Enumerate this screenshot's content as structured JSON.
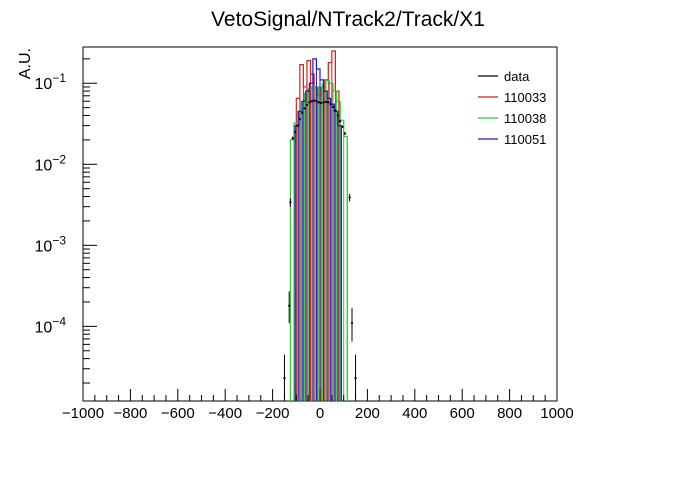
{
  "chart_data": {
    "type": "histogram",
    "title": "VetoSignal/NTrack2/Track/X1",
    "xlabel": "",
    "ylabel": "A.U.",
    "xlim": [
      -1000,
      1000
    ],
    "ylim": [
      1.2e-05,
      0.28
    ],
    "yscale": "log",
    "grid": false,
    "legend_position": "top-right",
    "x_ticks": [
      -1000,
      -800,
      -600,
      -400,
      -200,
      0,
      200,
      400,
      600,
      800,
      1000
    ],
    "x_tick_labels": [
      "−1000",
      "−800",
      "−600",
      "−400",
      "−200",
      "0",
      "200",
      "400",
      "600",
      "800",
      "1000"
    ],
    "y_ticks": [
      {
        "value": 0.1,
        "base": "10",
        "exp": "−1"
      },
      {
        "value": 0.01,
        "base": "10",
        "exp": "−2"
      },
      {
        "value": 0.001,
        "base": "10",
        "exp": "−3"
      },
      {
        "value": 0.0001,
        "base": "10",
        "exp": "−4"
      }
    ],
    "series": [
      {
        "name": "data",
        "style": "points",
        "color": "#000000",
        "points": [
          {
            "x": -150,
            "y": 2.3e-05,
            "lo": 1.3e-05,
            "hi": 4.5e-05
          },
          {
            "x": -130,
            "y": 0.00018,
            "lo": 0.00011,
            "hi": 0.00027
          },
          {
            "x": -125,
            "y": 0.0034,
            "lo": 0.003,
            "hi": 0.0038
          },
          {
            "x": -115,
            "y": 0.021,
            "lo": 0.02,
            "hi": 0.022
          },
          {
            "x": -105,
            "y": 0.025,
            "lo": 0.024,
            "hi": 0.026
          },
          {
            "x": -95,
            "y": 0.03,
            "lo": 0.029,
            "hi": 0.031
          },
          {
            "x": -85,
            "y": 0.036,
            "lo": 0.035,
            "hi": 0.037
          },
          {
            "x": -75,
            "y": 0.043,
            "lo": 0.042,
            "hi": 0.044
          },
          {
            "x": -65,
            "y": 0.049,
            "lo": 0.048,
            "hi": 0.05
          },
          {
            "x": -55,
            "y": 0.054,
            "lo": 0.053,
            "hi": 0.055
          },
          {
            "x": -45,
            "y": 0.058,
            "lo": 0.057,
            "hi": 0.059
          },
          {
            "x": -35,
            "y": 0.06,
            "lo": 0.059,
            "hi": 0.061
          },
          {
            "x": -25,
            "y": 0.061,
            "lo": 0.06,
            "hi": 0.062
          },
          {
            "x": -15,
            "y": 0.06,
            "lo": 0.059,
            "hi": 0.061
          },
          {
            "x": -5,
            "y": 0.058,
            "lo": 0.057,
            "hi": 0.059
          },
          {
            "x": 5,
            "y": 0.057,
            "lo": 0.056,
            "hi": 0.058
          },
          {
            "x": 15,
            "y": 0.058,
            "lo": 0.057,
            "hi": 0.059
          },
          {
            "x": 25,
            "y": 0.059,
            "lo": 0.058,
            "hi": 0.06
          },
          {
            "x": 35,
            "y": 0.058,
            "lo": 0.057,
            "hi": 0.059
          },
          {
            "x": 45,
            "y": 0.055,
            "lo": 0.054,
            "hi": 0.056
          },
          {
            "x": 55,
            "y": 0.051,
            "lo": 0.05,
            "hi": 0.052
          },
          {
            "x": 65,
            "y": 0.046,
            "lo": 0.045,
            "hi": 0.047
          },
          {
            "x": 75,
            "y": 0.04,
            "lo": 0.039,
            "hi": 0.041
          },
          {
            "x": 85,
            "y": 0.034,
            "lo": 0.033,
            "hi": 0.035
          },
          {
            "x": 95,
            "y": 0.029,
            "lo": 0.028,
            "hi": 0.03
          },
          {
            "x": 105,
            "y": 0.024,
            "lo": 0.023,
            "hi": 0.025
          },
          {
            "x": 125,
            "y": 0.0039,
            "lo": 0.0035,
            "hi": 0.0043
          },
          {
            "x": 135,
            "y": 0.00011,
            "lo": 6.5e-05,
            "hi": 0.00017
          },
          {
            "x": 150,
            "y": 2.3e-05,
            "lo": 1.3e-05,
            "hi": 4.5e-05
          }
        ]
      },
      {
        "name": "110033",
        "style": "step",
        "color": "#cc2222",
        "bins": [
          {
            "x0": -100,
            "x1": -85,
            "y": 0.065
          },
          {
            "x0": -85,
            "x1": -70,
            "y": 0.17
          },
          {
            "x0": -70,
            "x1": -55,
            "y": 0.09
          },
          {
            "x0": -55,
            "x1": -40,
            "y": 0.19
          },
          {
            "x0": -40,
            "x1": -25,
            "y": 0.13
          },
          {
            "x0": -25,
            "x1": -10,
            "y": 0.09
          },
          {
            "x0": -10,
            "x1": 5,
            "y": 0.07
          },
          {
            "x0": 5,
            "x1": 20,
            "y": 0.09
          },
          {
            "x0": 20,
            "x1": 35,
            "y": 0.11
          },
          {
            "x0": 35,
            "x1": 50,
            "y": 0.18
          },
          {
            "x0": 50,
            "x1": 65,
            "y": 0.25
          },
          {
            "x0": 65,
            "x1": 80,
            "y": 0.08
          }
        ]
      },
      {
        "name": "110038",
        "style": "step",
        "color": "#33cc33",
        "bins": [
          {
            "x0": -125,
            "x1": -110,
            "y": 0.02
          },
          {
            "x0": -110,
            "x1": -95,
            "y": 0.032
          },
          {
            "x0": -95,
            "x1": -80,
            "y": 0.045
          },
          {
            "x0": -80,
            "x1": -65,
            "y": 0.06
          },
          {
            "x0": -65,
            "x1": -50,
            "y": 0.075
          },
          {
            "x0": -50,
            "x1": -35,
            "y": 0.085
          },
          {
            "x0": -35,
            "x1": -20,
            "y": 0.09
          },
          {
            "x0": -20,
            "x1": -5,
            "y": 0.088
          },
          {
            "x0": -5,
            "x1": 10,
            "y": 0.09
          },
          {
            "x0": 10,
            "x1": 25,
            "y": 0.1
          },
          {
            "x0": 25,
            "x1": 40,
            "y": 0.108
          },
          {
            "x0": 40,
            "x1": 55,
            "y": 0.1
          },
          {
            "x0": 55,
            "x1": 70,
            "y": 0.08
          },
          {
            "x0": 70,
            "x1": 85,
            "y": 0.06
          },
          {
            "x0": 85,
            "x1": 100,
            "y": 0.035
          },
          {
            "x0": 100,
            "x1": 115,
            "y": 0.022
          }
        ]
      },
      {
        "name": "110051",
        "style": "step",
        "color": "#1a1acc",
        "bins": [
          {
            "x0": -105,
            "x1": -90,
            "y": 0.03
          },
          {
            "x0": -90,
            "x1": -75,
            "y": 0.045
          },
          {
            "x0": -75,
            "x1": -60,
            "y": 0.06
          },
          {
            "x0": -60,
            "x1": -45,
            "y": 0.08
          },
          {
            "x0": -45,
            "x1": -30,
            "y": 0.1
          },
          {
            "x0": -30,
            "x1": -15,
            "y": 0.2
          },
          {
            "x0": -15,
            "x1": 0,
            "y": 0.15
          },
          {
            "x0": 0,
            "x1": 15,
            "y": 0.11
          },
          {
            "x0": 15,
            "x1": 30,
            "y": 0.08
          },
          {
            "x0": 30,
            "x1": 45,
            "y": 0.065
          },
          {
            "x0": 45,
            "x1": 60,
            "y": 0.055
          },
          {
            "x0": 60,
            "x1": 75,
            "y": 0.045
          },
          {
            "x0": 75,
            "x1": 90,
            "y": 0.03
          }
        ]
      }
    ]
  }
}
